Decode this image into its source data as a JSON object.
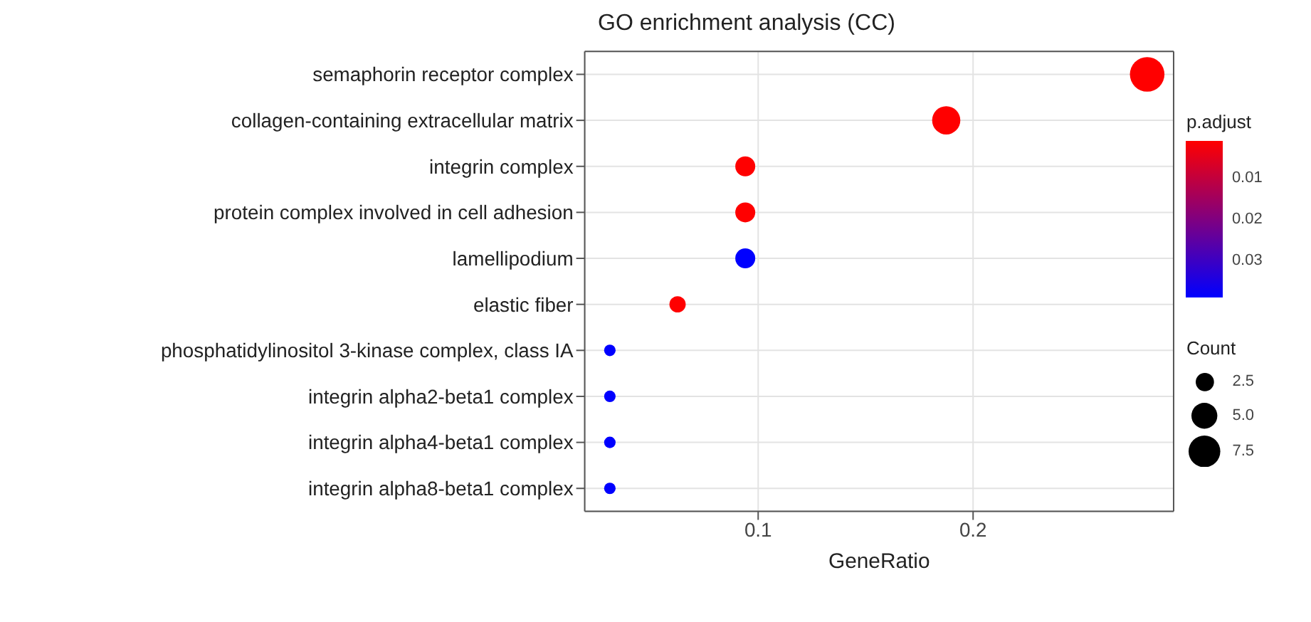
{
  "chart_data": {
    "type": "bubble",
    "title": "GO enrichment analysis (CC)",
    "xlabel": "GeneRatio",
    "orientation": "horizontal",
    "categories": [
      "semaphorin receptor complex",
      "collagen-containing extracellular matrix",
      "integrin complex",
      "protein complex involved in cell adhesion",
      "lamellipodium",
      "elastic fiber",
      "phosphatidylinositol 3-kinase complex, class IA",
      "integrin alpha2-beta1 complex",
      "integrin alpha4-beta1 complex",
      "integrin alpha8-beta1 complex"
    ],
    "values": [
      0.281,
      0.1875,
      0.094,
      0.094,
      0.094,
      0.0625,
      0.031,
      0.031,
      0.031,
      0.031
    ],
    "sizes": [
      9,
      6,
      3,
      3,
      3,
      2,
      1,
      1,
      1,
      1
    ],
    "size_legend": [
      {
        "value": 2.5,
        "label": "2.5"
      },
      {
        "value": 5,
        "label": "5.0"
      },
      {
        "value": 7.5,
        "label": "7.5"
      }
    ],
    "cvalues": [
      0.001,
      0.001,
      0.001,
      0.001,
      0.039,
      0.001,
      0.039,
      0.039,
      0.039,
      0.039
    ],
    "colors": [
      "#ff0000",
      "#ff0000",
      "#ff0000",
      "#ff0000",
      "#0000ff",
      "#ff0000",
      "#0000ff",
      "#0000ff",
      "#0000ff",
      "#0000ff"
    ],
    "clabel": "p.adjust",
    "clim": [
      0.001,
      0.039
    ],
    "cticks": [
      0.01,
      0.02,
      0.03
    ],
    "legend_title": "Count",
    "xlim": [
      0.0193,
      0.2933
    ],
    "xticks": [
      0.1,
      0.2
    ],
    "grid": true
  }
}
